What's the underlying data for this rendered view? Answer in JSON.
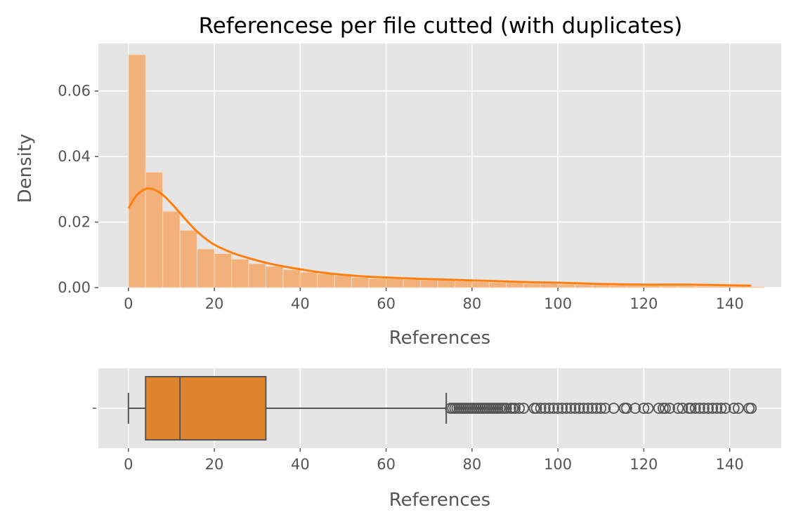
{
  "chart_data": [
    {
      "type": "histogram",
      "title": "Referencese per file cutted (with duplicates)",
      "xlabel": "References",
      "ylabel": "Density",
      "xlim": [
        -7,
        152
      ],
      "ylim": [
        0,
        0.0745
      ],
      "grid": true,
      "x_ticks": [
        0,
        20,
        40,
        60,
        80,
        100,
        120,
        140
      ],
      "y_ticks": [
        0.0,
        0.02,
        0.04,
        0.06
      ],
      "y_tick_labels": [
        "0.00",
        "0.02",
        "0.04",
        "0.06"
      ],
      "bin_width": 4,
      "bin_start": 0,
      "values": [
        0.0711,
        0.0352,
        0.0233,
        0.0175,
        0.0118,
        0.0104,
        0.0087,
        0.0073,
        0.0065,
        0.0055,
        0.0047,
        0.0042,
        0.0037,
        0.0031,
        0.0028,
        0.0027,
        0.0025,
        0.0023,
        0.0022,
        0.002,
        0.0018,
        0.0016,
        0.0015,
        0.0013,
        0.0012,
        0.001,
        0.0009,
        0.0008,
        0.0007,
        0.0006,
        0.0006,
        0.0005,
        0.0005,
        0.0004,
        0.0004,
        0.0004,
        0.0003
      ],
      "kde": {
        "x": [
          0,
          2,
          4,
          5,
          6,
          8,
          10,
          12,
          14,
          16,
          18,
          20,
          24,
          28,
          32,
          36,
          40,
          45,
          50,
          55,
          60,
          65,
          70,
          75,
          80,
          85,
          90,
          95,
          100,
          105,
          110,
          115,
          120,
          125,
          130,
          135,
          140,
          145
        ],
        "y": [
          0.0242,
          0.0283,
          0.0301,
          0.0302,
          0.0299,
          0.0283,
          0.0257,
          0.0228,
          0.0198,
          0.0171,
          0.0149,
          0.0131,
          0.0107,
          0.009,
          0.0076,
          0.0065,
          0.0056,
          0.0046,
          0.0039,
          0.0034,
          0.0031,
          0.0028,
          0.0026,
          0.0024,
          0.0022,
          0.002,
          0.0018,
          0.0016,
          0.0015,
          0.0013,
          0.0011,
          0.001,
          0.0009,
          0.0009,
          0.0009,
          0.0008,
          0.0007,
          0.0006
        ]
      },
      "colors": {
        "bar": "#f2b07a",
        "bar_edge": "#f6dcc6",
        "kde": "#ff7f0e",
        "background": "#e5e5e5"
      }
    },
    {
      "type": "box",
      "xlabel": "References",
      "xlim": [
        -7,
        152
      ],
      "x_ticks": [
        0,
        20,
        40,
        60,
        80,
        100,
        120,
        140
      ],
      "y_tick_labels": [
        ""
      ],
      "whisker_low": 0,
      "q1": 4,
      "median": 12,
      "q3": 32,
      "whisker_high": 74,
      "outliers": [
        75,
        75.5,
        76,
        76.5,
        77,
        77.5,
        78,
        78.5,
        79,
        79.5,
        80,
        80.5,
        81,
        81.5,
        82,
        82.5,
        83,
        83.5,
        84,
        84.5,
        85,
        85.5,
        86,
        86.5,
        87,
        87.5,
        88,
        89,
        89.5,
        90,
        91,
        92,
        94.5,
        95,
        96,
        97,
        98,
        99,
        100,
        101,
        102,
        103,
        104,
        105,
        106,
        107,
        108,
        109,
        110,
        111,
        113,
        115.5,
        116,
        118,
        120,
        121,
        123.5,
        124.5,
        125,
        126,
        128,
        129,
        130.5,
        131,
        132,
        133,
        134,
        135,
        136,
        137,
        138,
        139,
        141,
        142,
        144.5,
        145
      ],
      "colors": {
        "box": "#e0832d",
        "edge": "#555555",
        "background": "#e5e5e5"
      }
    }
  ]
}
